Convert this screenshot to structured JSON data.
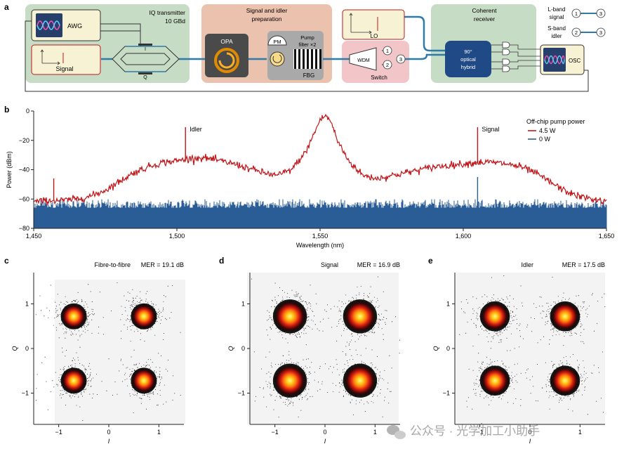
{
  "panel_a": {
    "label": "a",
    "awg": "AWG",
    "signal": "Signal",
    "iq_title": "IQ transmitter",
    "iq_rate": "10 GBd",
    "mod_i": "I",
    "mod_q": "Q",
    "prep_title1": "Signal and idler",
    "prep_title2": "preparation",
    "opa": "OPA",
    "pm": "PM",
    "pump_filter1": "Pump",
    "pump_filter2": "filter ×2",
    "fbg": "FBG",
    "lo": "LO",
    "wdm": "WDM",
    "switch": "Switch",
    "port1": "1",
    "port2": "2",
    "port3": "3",
    "rx_title1": "Coherent",
    "rx_title2": "receiver",
    "hybrid1": "90°",
    "hybrid2": "optical",
    "hybrid3": "hybrid",
    "osc": "OSC",
    "legend_l1": "L-band",
    "legend_l2": "signal",
    "legend_s1": "S-band",
    "legend_s2": "idler",
    "legend_a": "1",
    "legend_b": "3",
    "legend_c": "2",
    "legend_d": "3"
  },
  "chart_data": [
    {
      "panel": "b",
      "type": "line",
      "xlabel": "Wavelength (nm)",
      "ylabel": "Power (dBm)",
      "xlim": [
        1450,
        1650
      ],
      "ylim": [
        -80,
        0
      ],
      "xticks": [
        1450,
        1500,
        1550,
        1600,
        1650
      ],
      "xtick_labels": [
        "1,450",
        "1,500",
        "1,550",
        "1,600",
        "1,650"
      ],
      "yticks": [
        0,
        -20,
        -40,
        -60,
        -80
      ],
      "ytick_labels": [
        "0",
        "−20",
        "−40",
        "−60",
        "−80"
      ],
      "legend_title": "Off-chip pump power",
      "annotations": [
        {
          "text": "Idler",
          "x": 1503,
          "y": -12
        },
        {
          "text": "Signal",
          "x": 1605,
          "y": -12
        }
      ],
      "series": [
        {
          "name": "4.5 W",
          "color": "#c0171b",
          "points": [
            [
              1450,
              -62
            ],
            [
              1455,
              -61
            ],
            [
              1460,
              -61
            ],
            [
              1465,
              -60
            ],
            [
              1470,
              -58
            ],
            [
              1475,
              -54
            ],
            [
              1480,
              -48
            ],
            [
              1485,
              -42
            ],
            [
              1490,
              -38
            ],
            [
              1495,
              -35
            ],
            [
              1500,
              -34
            ],
            [
              1503,
              -33
            ],
            [
              1506,
              -32
            ],
            [
              1510,
              -32
            ],
            [
              1515,
              -34
            ],
            [
              1520,
              -36
            ],
            [
              1525,
              -39
            ],
            [
              1530,
              -42
            ],
            [
              1535,
              -44
            ],
            [
              1540,
              -40
            ],
            [
              1545,
              -28
            ],
            [
              1548,
              -15
            ],
            [
              1550,
              -6
            ],
            [
              1552,
              -3
            ],
            [
              1554,
              -8
            ],
            [
              1556,
              -20
            ],
            [
              1560,
              -34
            ],
            [
              1565,
              -44
            ],
            [
              1570,
              -46
            ],
            [
              1575,
              -44
            ],
            [
              1580,
              -42
            ],
            [
              1585,
              -40
            ],
            [
              1590,
              -38
            ],
            [
              1595,
              -37
            ],
            [
              1600,
              -36
            ],
            [
              1605,
              -35
            ],
            [
              1610,
              -35
            ],
            [
              1615,
              -36
            ],
            [
              1620,
              -38
            ],
            [
              1625,
              -42
            ],
            [
              1630,
              -48
            ],
            [
              1635,
              -54
            ],
            [
              1640,
              -58
            ],
            [
              1645,
              -60
            ],
            [
              1650,
              -62
            ]
          ],
          "spikes": [
            [
              1457,
              -46
            ],
            [
              1503,
              -11
            ],
            [
              1605,
              -11
            ]
          ]
        },
        {
          "name": "0 W",
          "color": "#2a5d96",
          "floor": -64,
          "spikes": [
            [
              1605,
              -45
            ]
          ]
        }
      ]
    },
    {
      "panel": "c",
      "type": "scatter",
      "title": "Fibre-to-fibre",
      "mer": "MER = 19.1 dB",
      "xlabel": "I",
      "ylabel": "Q",
      "xlim": [
        -1.5,
        1.5
      ],
      "ylim": [
        -1.7,
        1.7
      ],
      "xticks": [
        -1,
        0,
        1
      ],
      "xtick_labels": [
        "−1",
        "0",
        "1"
      ],
      "yticks": [
        1,
        0,
        -1
      ],
      "ytick_labels": [
        "1",
        "0",
        "−1"
      ],
      "centers": [
        [
          -0.7,
          0.72
        ],
        [
          0.7,
          0.72
        ],
        [
          -0.7,
          -0.72
        ],
        [
          0.7,
          -0.72
        ]
      ],
      "spread": 0.13
    },
    {
      "panel": "d",
      "type": "scatter",
      "title": "Signal",
      "mer": "MER = 16.9 dB",
      "xlabel": "I",
      "ylabel": "Q",
      "xlim": [
        -1.5,
        1.5
      ],
      "ylim": [
        -1.7,
        1.7
      ],
      "xticks": [
        -1,
        0,
        1
      ],
      "xtick_labels": [
        "−1",
        "0",
        "1"
      ],
      "yticks": [
        1,
        0,
        -1
      ],
      "ytick_labels": [
        "1",
        "0",
        "−1"
      ],
      "centers": [
        [
          -0.7,
          0.72
        ],
        [
          0.7,
          0.72
        ],
        [
          -0.7,
          -0.72
        ],
        [
          0.7,
          -0.72
        ]
      ],
      "spread": 0.17
    },
    {
      "panel": "e",
      "type": "scatter",
      "title": "Idler",
      "mer": "MER = 17.5 dB",
      "xlabel": "I",
      "ylabel": "Q",
      "xlim": [
        -1.5,
        1.5
      ],
      "ylim": [
        -1.7,
        1.7
      ],
      "xticks": [
        -1,
        0,
        1
      ],
      "xtick_labels": [
        "−1",
        "0",
        "1"
      ],
      "yticks": [
        1,
        0,
        -1
      ],
      "ytick_labels": [
        "1",
        "0",
        "−1"
      ],
      "centers": [
        [
          -0.7,
          0.72
        ],
        [
          0.7,
          0.72
        ],
        [
          -0.7,
          -0.72
        ],
        [
          0.7,
          -0.72
        ]
      ],
      "spread": 0.15
    }
  ],
  "panel_labels": {
    "b": "b",
    "c": "c",
    "d": "d",
    "e": "e"
  },
  "watermark": "公众号 · 光学加工小助手"
}
